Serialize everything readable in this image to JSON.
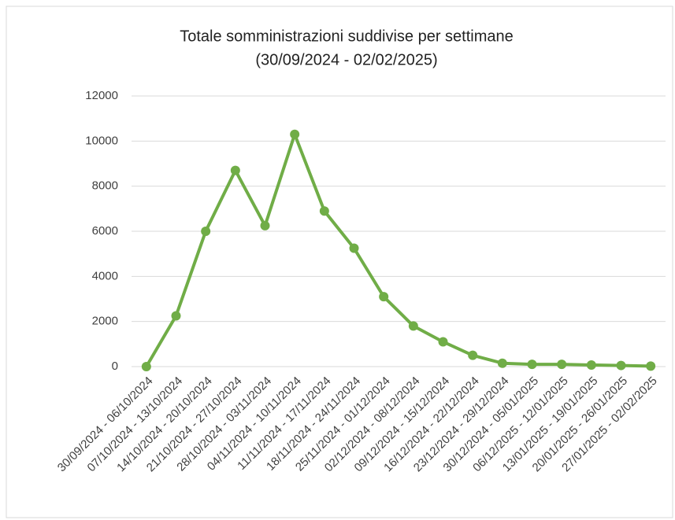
{
  "chart_data": {
    "type": "line",
    "title": "Totale somministrazioni suddivise per settimane",
    "subtitle": "(30/09/2024 - 02/02/2025)",
    "categories": [
      "30/09/2024 - 06/10/2024",
      "07/10/2024 - 13/10/2024",
      "14/10/2024 - 20/10/2024",
      "21/10/2024 - 27/10/2024",
      "28/10/2024 - 03/11/2024",
      "04/11/2024 - 10/11/2024",
      "11/11/2024 - 17/11/2024",
      "18/11/2024 - 24/11/2024",
      "25/11/2024 - 01/12/2024",
      "02/12/2024 - 08/12/2024",
      "09/12/2024 - 15/12/2024",
      "16/12/2024 - 22/12/2024",
      "23/12/2024 - 29/12/2024",
      "30/12/2024 - 05/01/2025",
      "06/12/2025 - 12/01/2025",
      "13/01/2025 - 19/01/2025",
      "20/01/2025 - 26/01/2025",
      "27/01/2025 - 02/02/2025"
    ],
    "values": [
      0,
      2250,
      6000,
      8700,
      6250,
      10300,
      6900,
      5250,
      3100,
      1800,
      1100,
      500,
      150,
      100,
      100,
      70,
      50,
      20
    ],
    "color": "#70ad47",
    "ylim": [
      0,
      12000
    ],
    "yticks": [
      0,
      2000,
      4000,
      6000,
      8000,
      10000,
      12000
    ],
    "grid": true
  }
}
